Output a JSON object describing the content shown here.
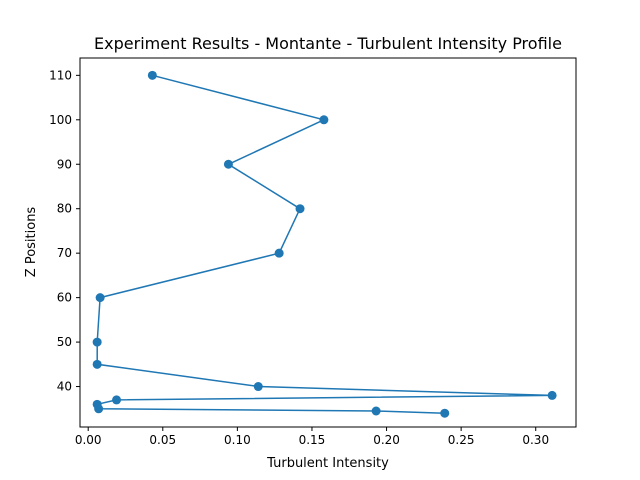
{
  "chart_data": {
    "type": "line",
    "title": "Experiment Results - Montante - Turbulent Intensity Profile",
    "xlabel": "Turbulent Intensity",
    "ylabel": "Z Positions",
    "xlim": [
      -0.0055,
      0.327
    ],
    "ylim": [
      30.9,
      113.9
    ],
    "xticks": [
      0.0,
      0.05,
      0.1,
      0.15,
      0.2,
      0.25,
      0.3
    ],
    "xtick_labels": [
      "0.00",
      "0.05",
      "0.10",
      "0.15",
      "0.20",
      "0.25",
      "0.30"
    ],
    "yticks": [
      40,
      50,
      60,
      70,
      80,
      90,
      100,
      110
    ],
    "ytick_labels": [
      "40",
      "50",
      "60",
      "70",
      "80",
      "90",
      "100",
      "110"
    ],
    "grid": false,
    "series": [
      {
        "color": "#1f77b4",
        "marker": "circle",
        "points": [
          {
            "x": 0.043,
            "y": 110
          },
          {
            "x": 0.158,
            "y": 100
          },
          {
            "x": 0.094,
            "y": 90
          },
          {
            "x": 0.142,
            "y": 80
          },
          {
            "x": 0.128,
            "y": 70
          },
          {
            "x": 0.008,
            "y": 60
          },
          {
            "x": 0.006,
            "y": 50
          },
          {
            "x": 0.006,
            "y": 45
          },
          {
            "x": 0.114,
            "y": 40
          },
          {
            "x": 0.311,
            "y": 38
          },
          {
            "x": 0.019,
            "y": 37
          },
          {
            "x": 0.006,
            "y": 36
          },
          {
            "x": 0.007,
            "y": 35
          },
          {
            "x": 0.193,
            "y": 34.5
          },
          {
            "x": 0.239,
            "y": 34
          }
        ]
      }
    ]
  }
}
